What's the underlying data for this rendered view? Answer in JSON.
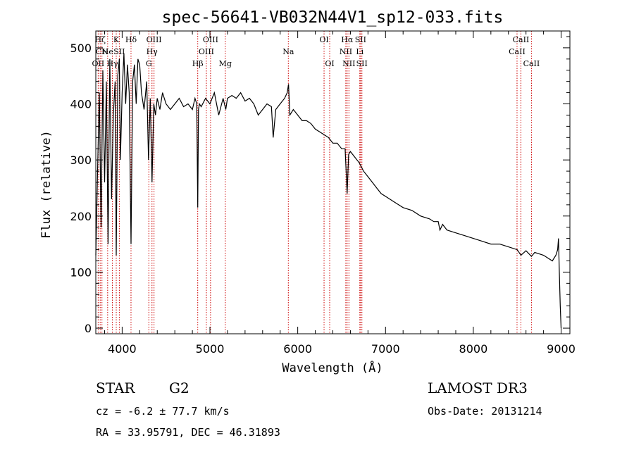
{
  "chart_data": {
    "type": "line",
    "title": "spec-56641-VB032N44V1_sp12-033.fits",
    "xlabel": "Wavelength (Å)",
    "ylabel": "Flux (relative)",
    "xlim": [
      3700,
      9100
    ],
    "ylim": [
      -10,
      530
    ],
    "xticks": [
      4000,
      5000,
      6000,
      7000,
      8000,
      9000
    ],
    "yticks": [
      0,
      100,
      200,
      300,
      400,
      500
    ],
    "series": [
      {
        "name": "flux",
        "x": [
          3700,
          3720,
          3740,
          3760,
          3780,
          3800,
          3820,
          3840,
          3860,
          3880,
          3900,
          3920,
          3933,
          3950,
          3968,
          3980,
          4000,
          4020,
          4040,
          4060,
          4080,
          4101,
          4120,
          4140,
          4160,
          4180,
          4200,
          4220,
          4250,
          4280,
          4300,
          4320,
          4340,
          4360,
          4380,
          4400,
          4430,
          4460,
          4500,
          4550,
          4600,
          4650,
          4700,
          4750,
          4800,
          4830,
          4850,
          4861,
          4870,
          4880,
          4900,
          4950,
          5000,
          5050,
          5100,
          5150,
          5180,
          5200,
          5250,
          5300,
          5350,
          5400,
          5450,
          5500,
          5550,
          5600,
          5650,
          5700,
          5720,
          5750,
          5800,
          5850,
          5880,
          5895,
          5910,
          5950,
          6000,
          6050,
          6100,
          6150,
          6200,
          6250,
          6300,
          6350,
          6400,
          6450,
          6500,
          6540,
          6563,
          6580,
          6600,
          6650,
          6700,
          6750,
          6800,
          6850,
          6900,
          6950,
          7000,
          7050,
          7100,
          7150,
          7200,
          7300,
          7400,
          7500,
          7550,
          7600,
          7620,
          7650,
          7700,
          7800,
          7900,
          8000,
          8100,
          8200,
          8300,
          8400,
          8500,
          8542,
          8600,
          8662,
          8700,
          8800,
          8850,
          8900,
          8940,
          8960,
          8970,
          8980,
          8990,
          9000
        ],
        "values": [
          130,
          280,
          420,
          180,
          460,
          260,
          440,
          150,
          480,
          230,
          380,
          440,
          130,
          450,
          480,
          300,
          420,
          490,
          400,
          470,
          420,
          150,
          440,
          470,
          400,
          480,
          470,
          420,
          390,
          440,
          300,
          410,
          260,
          400,
          380,
          410,
          390,
          420,
          400,
          390,
          400,
          410,
          395,
          400,
          390,
          410,
          400,
          215,
          390,
          400,
          395,
          410,
          400,
          420,
          380,
          410,
          390,
          410,
          415,
          410,
          420,
          405,
          410,
          400,
          380,
          390,
          400,
          395,
          340,
          390,
          400,
          410,
          420,
          435,
          380,
          390,
          380,
          370,
          370,
          365,
          355,
          350,
          345,
          340,
          330,
          330,
          320,
          320,
          240,
          310,
          315,
          305,
          295,
          280,
          270,
          260,
          250,
          240,
          235,
          230,
          225,
          220,
          215,
          210,
          200,
          195,
          190,
          190,
          175,
          185,
          175,
          170,
          165,
          160,
          155,
          150,
          150,
          145,
          140,
          130,
          138,
          128,
          135,
          130,
          125,
          120,
          130,
          140,
          160,
          100,
          40,
          0
        ]
      }
    ],
    "spectral_lines": [
      {
        "wavelength": 3727,
        "label": "OII",
        "row": 3
      },
      {
        "wavelength": 3750,
        "label": "Hζ",
        "row": 1
      },
      {
        "wavelength": 3770,
        "label": "CN",
        "row": 2
      },
      {
        "wavelength": 3835,
        "label": "He",
        "row": 2
      },
      {
        "wavelength": 3889,
        "label": "Hγ",
        "row": 3
      },
      {
        "wavelength": 3933,
        "label": "K",
        "row": 1
      },
      {
        "wavelength": 3968,
        "label": "SII",
        "row": 2
      },
      {
        "wavelength": 4101,
        "label": "Hδ",
        "row": 1
      },
      {
        "wavelength": 4304,
        "label": "G",
        "row": 3
      },
      {
        "wavelength": 4340,
        "label": "Hγ",
        "row": 2
      },
      {
        "wavelength": 4363,
        "label": "OIII",
        "row": 1
      },
      {
        "wavelength": 4861,
        "label": "Hβ",
        "row": 3
      },
      {
        "wavelength": 4959,
        "label": "OIII",
        "row": 2
      },
      {
        "wavelength": 5007,
        "label": "OIII",
        "row": 1
      },
      {
        "wavelength": 5175,
        "label": "Mg",
        "row": 3
      },
      {
        "wavelength": 5893,
        "label": "Na",
        "row": 2
      },
      {
        "wavelength": 6300,
        "label": "OI",
        "row": 1
      },
      {
        "wavelength": 6364,
        "label": "OI",
        "row": 3
      },
      {
        "wavelength": 6548,
        "label": "NII",
        "row": 2
      },
      {
        "wavelength": 6563,
        "label": "Hα",
        "row": 1
      },
      {
        "wavelength": 6583,
        "label": "NII",
        "row": 3
      },
      {
        "wavelength": 6707,
        "label": "Li",
        "row": 2
      },
      {
        "wavelength": 6716,
        "label": "SII",
        "row": 1
      },
      {
        "wavelength": 6731,
        "label": "SII",
        "row": 3
      },
      {
        "wavelength": 8498,
        "label": "CaII",
        "row": 2
      },
      {
        "wavelength": 8542,
        "label": "CaII",
        "row": 1
      },
      {
        "wavelength": 8662,
        "label": "CaII",
        "row": 3
      }
    ]
  },
  "info": {
    "object_class": "STAR",
    "subclass": "G2",
    "survey": "LAMOST DR3",
    "redshift": "cz = -6.2 ± 77.7 km/s",
    "obs_date": "Obs-Date: 20131214",
    "coords": "RA =  33.95791, DEC =  46.31893"
  },
  "colors": {
    "line_marker": "#cc0000",
    "spectrum": "#000000"
  }
}
